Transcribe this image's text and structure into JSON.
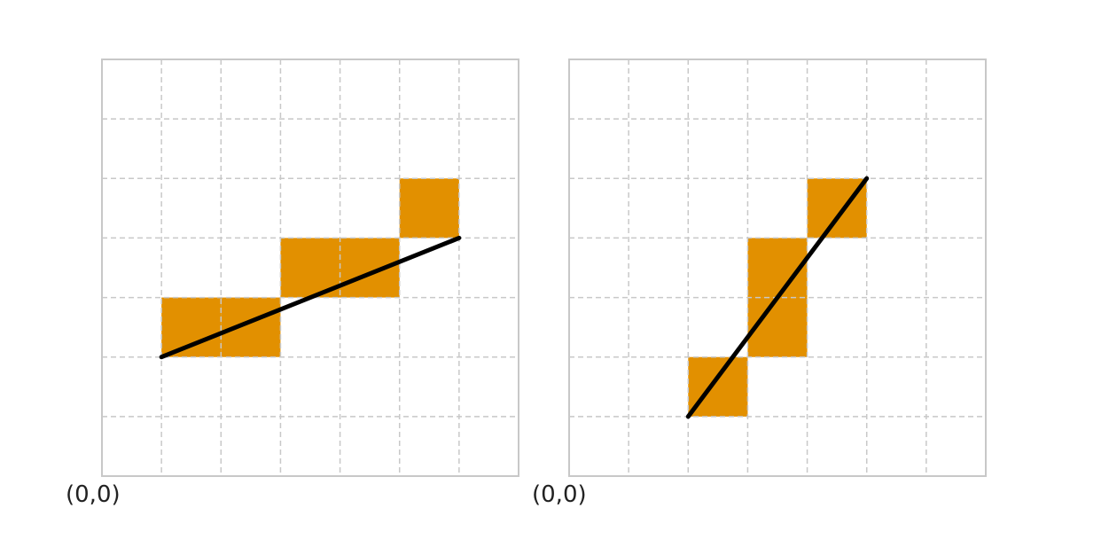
{
  "colors": {
    "cell_fill": "#E29000",
    "line": "#000000",
    "grid": "#c8c8c8",
    "frame": "#c8c8c8",
    "background": "#ffffff"
  },
  "panels": [
    {
      "name": "left-panel",
      "origin_label": "(0,0)",
      "grid_size": 7,
      "filled_cells": [
        [
          1,
          2
        ],
        [
          2,
          2
        ],
        [
          3,
          3
        ],
        [
          4,
          3
        ],
        [
          5,
          4
        ]
      ],
      "line": {
        "from": [
          1,
          2
        ],
        "to": [
          6,
          4
        ]
      }
    },
    {
      "name": "right-panel",
      "origin_label": "(0,0)",
      "grid_size": 7,
      "filled_cells": [
        [
          2,
          1
        ],
        [
          3,
          2
        ],
        [
          3,
          3
        ],
        [
          4,
          4
        ]
      ],
      "line": {
        "from": [
          2,
          1
        ],
        "to": [
          5,
          5
        ]
      }
    }
  ]
}
